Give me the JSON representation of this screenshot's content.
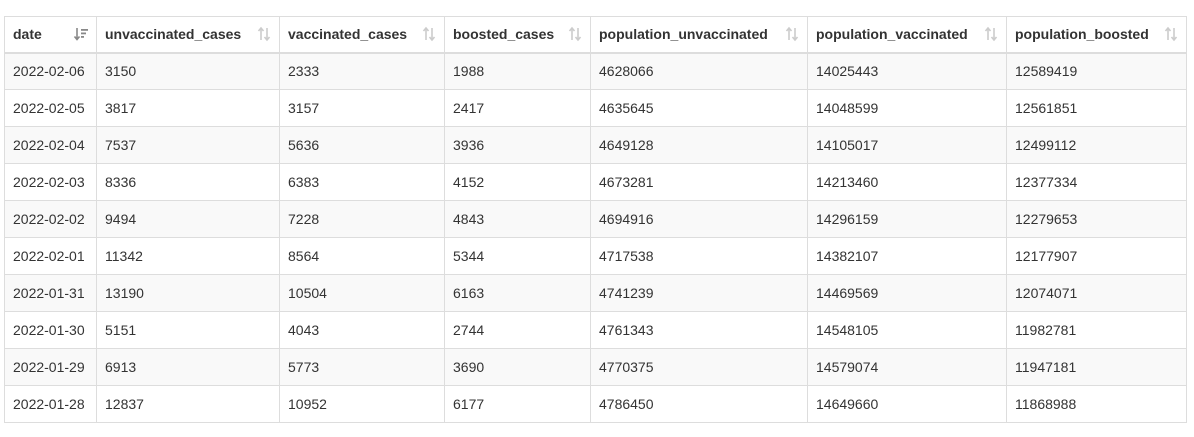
{
  "table": {
    "columns": [
      {
        "label": "date",
        "sort_icon": "sort-descending-icon",
        "sorted": true
      },
      {
        "label": "unvaccinated_cases",
        "sort_icon": "sort-icon",
        "sorted": false
      },
      {
        "label": "vaccinated_cases",
        "sort_icon": "sort-icon",
        "sorted": false
      },
      {
        "label": "boosted_cases",
        "sort_icon": "sort-icon",
        "sorted": false
      },
      {
        "label": "population_unvaccinated",
        "sort_icon": "sort-icon",
        "sorted": false
      },
      {
        "label": "population_vaccinated",
        "sort_icon": "sort-icon",
        "sorted": false
      },
      {
        "label": "population_boosted",
        "sort_icon": "sort-icon",
        "sorted": false
      }
    ],
    "rows": [
      [
        "2022-02-06",
        "3150",
        "2333",
        "1988",
        "4628066",
        "14025443",
        "12589419"
      ],
      [
        "2022-02-05",
        "3817",
        "3157",
        "2417",
        "4635645",
        "14048599",
        "12561851"
      ],
      [
        "2022-02-04",
        "7537",
        "5636",
        "3936",
        "4649128",
        "14105017",
        "12499112"
      ],
      [
        "2022-02-03",
        "8336",
        "6383",
        "4152",
        "4673281",
        "14213460",
        "12377334"
      ],
      [
        "2022-02-02",
        "9494",
        "7228",
        "4843",
        "4694916",
        "14296159",
        "12279653"
      ],
      [
        "2022-02-01",
        "11342",
        "8564",
        "5344",
        "4717538",
        "14382107",
        "12177907"
      ],
      [
        "2022-01-31",
        "13190",
        "10504",
        "6163",
        "4741239",
        "14469569",
        "12074071"
      ],
      [
        "2022-01-30",
        "5151",
        "4043",
        "2744",
        "4761343",
        "14548105",
        "11982781"
      ],
      [
        "2022-01-29",
        "6913",
        "5773",
        "3690",
        "4770375",
        "14579074",
        "11947181"
      ],
      [
        "2022-01-28",
        "12837",
        "10952",
        "6177",
        "4786450",
        "14649660",
        "11868988"
      ]
    ]
  },
  "colors": {
    "border": "#dddddd",
    "stripe": "#f9f9f9",
    "text": "#333333",
    "sort_inactive": "#cccccc",
    "sort_active": "#888888"
  }
}
